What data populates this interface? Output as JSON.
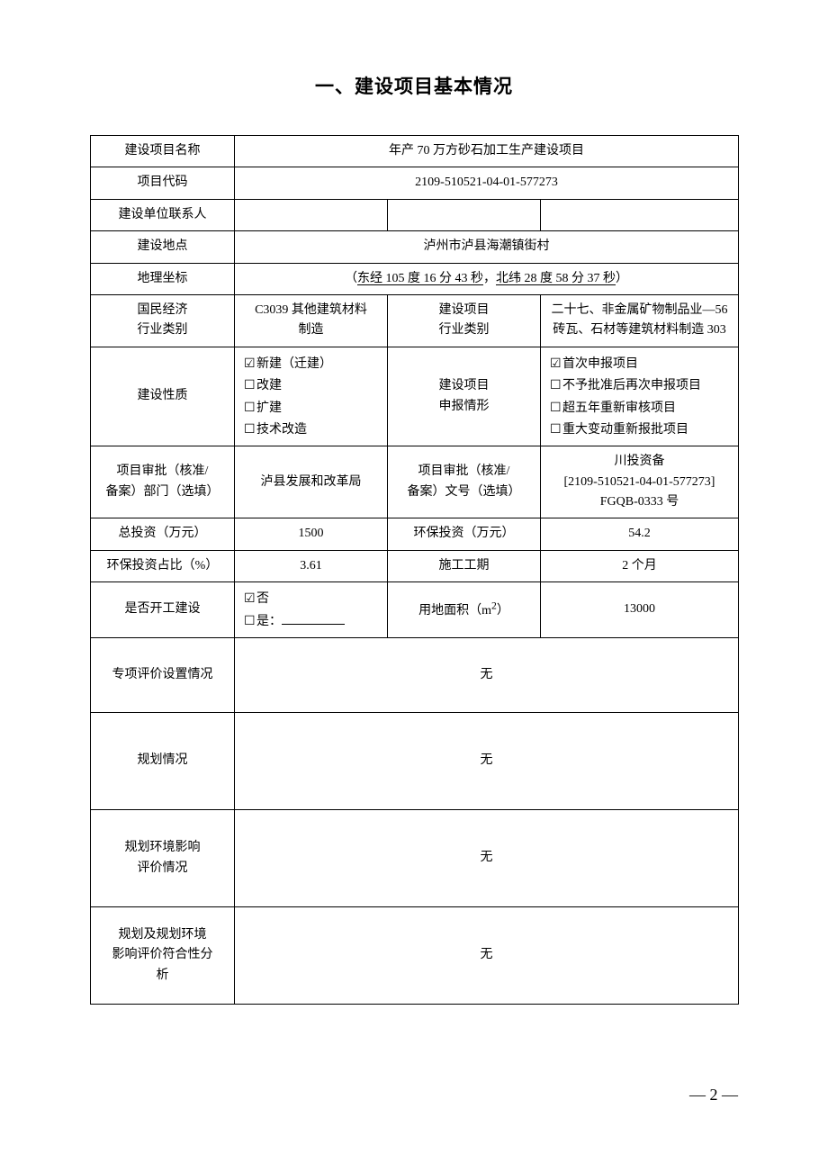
{
  "title": "一、建设项目基本情况",
  "rows": {
    "r1": {
      "label": "建设项目名称",
      "value": "年产 70 万方砂石加工生产建设项目"
    },
    "r2": {
      "label": "项目代码",
      "value": "2109-510521-04-01-577273"
    },
    "r3": {
      "label": "建设单位联系人",
      "c2": "",
      "c3": "",
      "c4": ""
    },
    "r4": {
      "label": "建设地点",
      "value": "泸州市泸县海潮镇街村"
    },
    "r5": {
      "label": "地理坐标",
      "prefix": "（",
      "lon": "东经 105 度 16 分 43 秒",
      "sep": "，",
      "lat": "北纬 28 度 58 分 37 秒",
      "suffix": "）"
    },
    "r6": {
      "label": "国民经济\n行业类别",
      "c2": "C3039 其他建筑材料\n制造",
      "c3": "建设项目\n行业类别",
      "c4": "二十七、非金属矿物制品业—56 砖瓦、石材等建筑材料制造 303"
    },
    "r7": {
      "label": "建设性质",
      "options_left": [
        {
          "checked": true,
          "text": "新建（迁建）"
        },
        {
          "checked": false,
          "text": "改建"
        },
        {
          "checked": false,
          "text": "扩建"
        },
        {
          "checked": false,
          "text": "技术改造"
        }
      ],
      "c3": "建设项目\n申报情形",
      "options_right": [
        {
          "checked": true,
          "text": "首次申报项目"
        },
        {
          "checked": false,
          "text": "不予批准后再次申报项目"
        },
        {
          "checked": false,
          "text": "超五年重新审核项目"
        },
        {
          "checked": false,
          "text": "重大变动重新报批项目"
        }
      ]
    },
    "r8": {
      "label": "项目审批（核准/\n备案）部门（选填）",
      "c2": "泸县发展和改革局",
      "c3": "项目审批（核准/\n备案）文号（选填）",
      "c4": "川投资备\n[2109-510521-04-01-577273]\nFGQB-0333 号"
    },
    "r9": {
      "label": "总投资（万元）",
      "c2": "1500",
      "c3": "环保投资（万元）",
      "c4": "54.2"
    },
    "r10": {
      "label": "环保投资占比（%）",
      "c2": "3.61",
      "c3": "施工工期",
      "c4": "2 个月"
    },
    "r11": {
      "label": "是否开工建设",
      "opt_no": {
        "checked": true,
        "text": "否"
      },
      "opt_yes_text": "是：",
      "c3": "用地面积（m2）",
      "c4": "13000"
    },
    "r12": {
      "label": "专项评价设置情况",
      "value": "无"
    },
    "r13": {
      "label": "规划情况",
      "value": "无"
    },
    "r14": {
      "label": "规划环境影响\n评价情况",
      "value": "无"
    },
    "r15": {
      "label": "规划及规划环境\n影响评价符合性分\n析",
      "value": "无"
    }
  },
  "page_number": "2",
  "glyphs": {
    "checked": "☑",
    "unchecked": "☐"
  },
  "colors": {
    "text": "#000000",
    "border": "#000000",
    "background": "#ffffff"
  }
}
